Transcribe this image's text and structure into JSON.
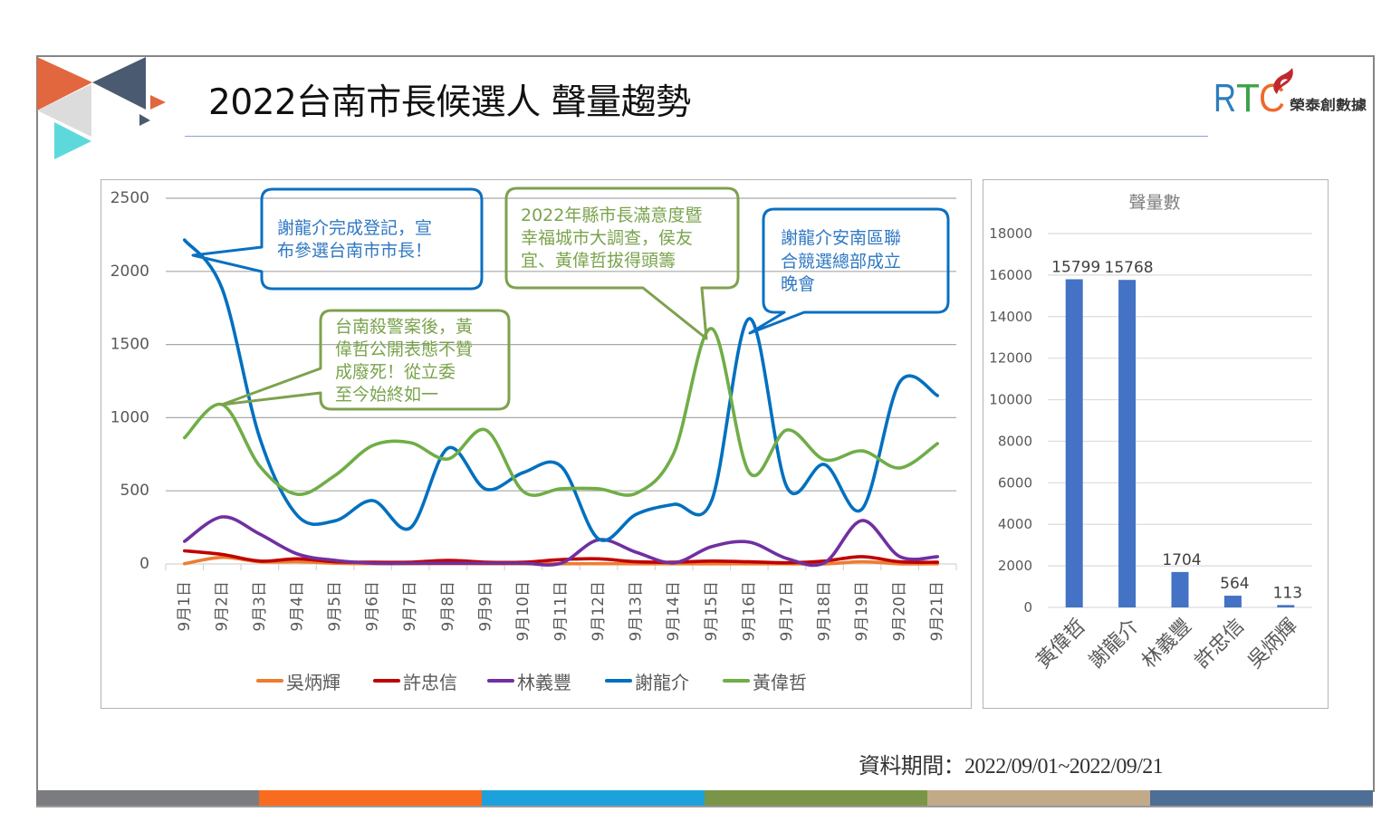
{
  "slide": {
    "title": "2022台南市長候選人 聲量趨勢",
    "logo": {
      "brand": "RTC",
      "brand_letters": [
        "R",
        "T",
        "C"
      ],
      "company": "榮泰創數據"
    },
    "footer": "資料期間：2022/09/01~2022/09/21",
    "bottom_bar_colors": [
      "#7b7c80",
      "#f96b1e",
      "#1ca1db",
      "#7a9548",
      "#c2aa89",
      "#4f6e96"
    ]
  },
  "annotations": [
    {
      "series": "謝龍介",
      "lines": [
        "謝龍介完成登記，宣",
        "布參選台南市市長！"
      ]
    },
    {
      "series": "黃偉哲",
      "lines": [
        "台南殺警案後，黃",
        "偉哲公開表態不贊",
        "成廢死！從立委",
        "至今始終如一"
      ]
    },
    {
      "series": "黃偉哲",
      "lines": [
        "2022年縣市長滿意度暨",
        "幸福城市大調查，侯友",
        "宜、黃偉哲拔得頭籌"
      ]
    },
    {
      "series": "謝龍介",
      "lines": [
        "謝龍介安南區聯",
        "合競選總部成立",
        "晚會"
      ]
    }
  ],
  "chart_data": [
    {
      "type": "line",
      "title": "",
      "xlabel": "",
      "ylabel": "",
      "smooth": true,
      "grid": true,
      "legend": "bottom",
      "ylim": [
        0,
        2500
      ],
      "yticks": [
        0,
        500,
        1000,
        1500,
        2000,
        2500
      ],
      "categories": [
        "9月1日",
        "9月2日",
        "9月3日",
        "9月4日",
        "9月5日",
        "9月6日",
        "9月7日",
        "9月8日",
        "9月9日",
        "9月10日",
        "9月11日",
        "9月12日",
        "9月13日",
        "9月14日",
        "9月15日",
        "9月16日",
        "9月17日",
        "9月18日",
        "9月19日",
        "9月20日",
        "9月21日"
      ],
      "series": [
        {
          "name": "吳炳輝",
          "color": "#ed7d31",
          "values": [
            2,
            45,
            15,
            15,
            5,
            2,
            1,
            2,
            1,
            1,
            1,
            2,
            1,
            1,
            1,
            1,
            1,
            0,
            15,
            1,
            1
          ]
        },
        {
          "name": "許忠信",
          "color": "#c00000",
          "values": [
            90,
            65,
            20,
            35,
            15,
            12,
            12,
            25,
            12,
            12,
            30,
            35,
            15,
            12,
            20,
            15,
            8,
            20,
            50,
            15,
            12
          ]
        },
        {
          "name": "林義豐",
          "color": "#7030a0",
          "values": [
            155,
            322,
            204,
            68,
            25,
            5,
            5,
            5,
            5,
            5,
            5,
            165,
            80,
            8,
            118,
            149,
            37,
            8,
            297,
            50,
            50
          ]
        },
        {
          "name": "謝龍介",
          "color": "#0070c0",
          "values": [
            2215,
            1880,
            860,
            330,
            295,
            433,
            247,
            792,
            512,
            625,
            668,
            170,
            340,
            408,
            433,
            1677,
            526,
            680,
            377,
            1244,
            1151
          ]
        },
        {
          "name": "黃偉哲",
          "color": "#70ad47",
          "values": [
            863,
            1089,
            668,
            476,
            606,
            810,
            829,
            718,
            916,
            495,
            514,
            514,
            483,
            760,
            1609,
            625,
            916,
            712,
            773,
            656,
            823
          ]
        }
      ]
    },
    {
      "type": "bar",
      "title": "聲量數",
      "xlabel": "",
      "ylabel": "",
      "grid": true,
      "legend": "none",
      "ylim": [
        0,
        18000
      ],
      "yticks": [
        0,
        2000,
        4000,
        6000,
        8000,
        10000,
        12000,
        14000,
        16000,
        18000
      ],
      "categories": [
        "黃偉哲",
        "謝龍介",
        "林義豐",
        "許忠信",
        "吳炳輝"
      ],
      "values": [
        15799,
        15768,
        1704,
        564,
        113
      ],
      "color": "#4472c4"
    }
  ]
}
